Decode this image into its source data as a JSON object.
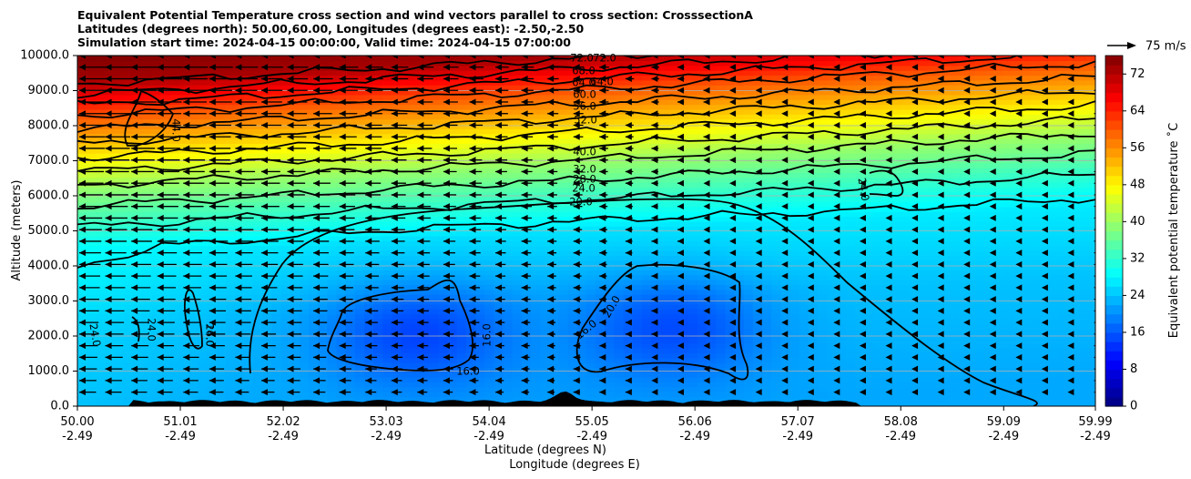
{
  "titles": [
    "Equivalent Potential Temperature cross section and wind vectors parallel to cross section: CrosssectionA",
    "Latitudes (degrees north): 50.00,60.00, Longitudes (degrees east): -2.50,-2.50",
    "Simulation start time: 2024-04-15 00:00:00, Valid time: 2024-04-15 07:00:00"
  ],
  "colors": {
    "terrain": "#000000",
    "grid": "#b0b0b0",
    "contour": "#000000"
  },
  "chart_data": {
    "type": "heatmap",
    "xlabel": "Latitude (degrees N)",
    "xlabel2": "Longitude (degrees E)",
    "ylabel": "Altitude (meters)",
    "x_ticks": [
      {
        "lat": "50.00",
        "lon": "-2.49"
      },
      {
        "lat": "51.01",
        "lon": "-2.49"
      },
      {
        "lat": "52.02",
        "lon": "-2.49"
      },
      {
        "lat": "53.03",
        "lon": "-2.49"
      },
      {
        "lat": "54.04",
        "lon": "-2.49"
      },
      {
        "lat": "55.05",
        "lon": "-2.49"
      },
      {
        "lat": "56.06",
        "lon": "-2.49"
      },
      {
        "lat": "57.07",
        "lon": "-2.49"
      },
      {
        "lat": "58.08",
        "lon": "-2.49"
      },
      {
        "lat": "59.09",
        "lon": "-2.49"
      },
      {
        "lat": "59.99",
        "lon": "-2.49"
      }
    ],
    "xlim": [
      50.0,
      59.99
    ],
    "ylim": [
      0,
      10000
    ],
    "y_ticks": [
      "0.0",
      "1000.0",
      "2000.0",
      "3000.0",
      "4000.0",
      "5000.0",
      "6000.0",
      "7000.0",
      "8000.0",
      "9000.0",
      "10000.0"
    ],
    "grid": "horizontal",
    "colorbar": {
      "label": "Equivalent potential temperature $^\\circ$C",
      "label_display": "Equivalent potential temperature ˚C",
      "min": 0,
      "max": 76,
      "ticks": [
        "0",
        "8",
        "16",
        "24",
        "32",
        "40",
        "48",
        "56",
        "64",
        "72"
      ]
    },
    "quiver_key": {
      "label": "75 m/s",
      "value": 75
    },
    "contour_levels": [
      16,
      20,
      24,
      28,
      32,
      40,
      44,
      52,
      56,
      60,
      64,
      68,
      72
    ],
    "contour_labels": [
      "72.0",
      "72.0",
      "68.0",
      "64.0",
      "64.0",
      "60.0",
      "56.0",
      "52.0",
      "40.0",
      "32.0",
      "28.0",
      "24.0",
      "20.0",
      "44.0",
      "24.0",
      "24.0",
      "24.0",
      "24.0",
      "16.0",
      "16.0",
      "16.0",
      "16.0",
      "20.0"
    ],
    "field_profile": [
      {
        "z": 0,
        "theta": 22
      },
      {
        "z": 3000,
        "theta": 24
      },
      {
        "z": 5000,
        "theta": 27
      },
      {
        "z": 6000,
        "theta": 33
      },
      {
        "z": 7000,
        "theta": 40
      },
      {
        "z": 8000,
        "theta": 50
      },
      {
        "z": 9000,
        "theta": 60
      },
      {
        "z": 10000,
        "theta": 73
      }
    ]
  }
}
